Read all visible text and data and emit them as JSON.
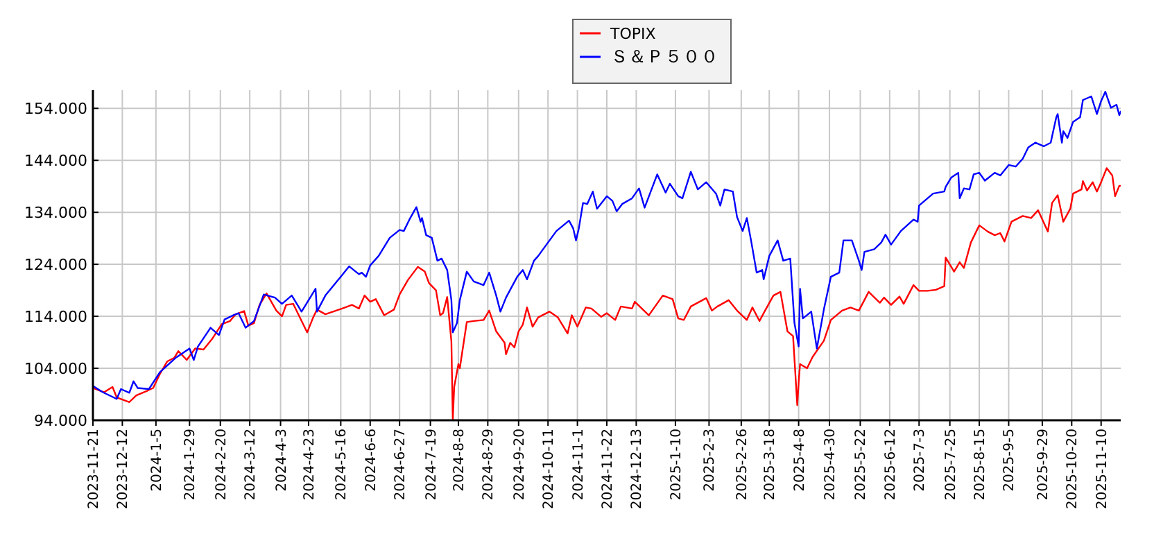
{
  "chart_data": {
    "type": "line",
    "grid": true,
    "legend": "top",
    "xlim": [
      "2023-11-21",
      "2025-11-24"
    ],
    "ylim": [
      94,
      157.5
    ],
    "xticks": [
      {
        "value": "2023-11-21",
        "label": "2023-11-21"
      },
      {
        "value": "2023-12-12",
        "label": "2023-12-12"
      },
      {
        "value": "2024-01-05",
        "label": "2024-1-5"
      },
      {
        "value": "2024-01-29",
        "label": "2024-1-29"
      },
      {
        "value": "2024-02-20",
        "label": "2024-2-20"
      },
      {
        "value": "2024-03-12",
        "label": "2024-3-12"
      },
      {
        "value": "2024-04-03",
        "label": "2024-4-3"
      },
      {
        "value": "2024-04-23",
        "label": "2024-4-23"
      },
      {
        "value": "2024-05-16",
        "label": "2024-5-16"
      },
      {
        "value": "2024-06-06",
        "label": "2024-6-6"
      },
      {
        "value": "2024-06-27",
        "label": "2024-6-27"
      },
      {
        "value": "2024-07-19",
        "label": "2024-7-19"
      },
      {
        "value": "2024-08-08",
        "label": "2024-8-8"
      },
      {
        "value": "2024-08-29",
        "label": "2024-8-29"
      },
      {
        "value": "2024-09-20",
        "label": "2024-9-20"
      },
      {
        "value": "2024-10-11",
        "label": "2024-10-11"
      },
      {
        "value": "2024-11-01",
        "label": "2024-11-1"
      },
      {
        "value": "2024-11-22",
        "label": "2024-11-22"
      },
      {
        "value": "2024-12-13",
        "label": "2024-12-13"
      },
      {
        "value": "2025-01-10",
        "label": "2025-1-10"
      },
      {
        "value": "2025-02-03",
        "label": "2025-2-3"
      },
      {
        "value": "2025-02-26",
        "label": "2025-2-26"
      },
      {
        "value": "2025-03-18",
        "label": "2025-3-18"
      },
      {
        "value": "2025-04-08",
        "label": "2025-4-8"
      },
      {
        "value": "2025-04-30",
        "label": "2025-4-30"
      },
      {
        "value": "2025-05-22",
        "label": "2025-5-22"
      },
      {
        "value": "2025-06-12",
        "label": "2025-6-12"
      },
      {
        "value": "2025-07-03",
        "label": "2025-7-3"
      },
      {
        "value": "2025-07-25",
        "label": "2025-7-25"
      },
      {
        "value": "2025-08-15",
        "label": "2025-8-15"
      },
      {
        "value": "2025-09-05",
        "label": "2025-9-5"
      },
      {
        "value": "2025-09-29",
        "label": "2025-9-29"
      },
      {
        "value": "2025-10-20",
        "label": "2025-10-20"
      },
      {
        "value": "2025-11-10",
        "label": "2025-11-10"
      }
    ],
    "yticks": [
      {
        "value": 94,
        "label": "94.000"
      },
      {
        "value": 104,
        "label": "104.000"
      },
      {
        "value": 114,
        "label": "114.000"
      },
      {
        "value": 124,
        "label": "124.000"
      },
      {
        "value": 134,
        "label": "134.000"
      },
      {
        "value": 144,
        "label": "144.000"
      },
      {
        "value": 154,
        "label": "154.000"
      }
    ],
    "series": [
      {
        "name": "TOPIX",
        "color": "#ff0000",
        "x": [
          "2023-11-21",
          "2023-11-29",
          "2023-12-05",
          "2023-12-08",
          "2023-12-17",
          "2023-12-22",
          "2023-12-30",
          "2024-01-03",
          "2024-01-08",
          "2024-01-13",
          "2024-01-18",
          "2024-01-21",
          "2024-01-27",
          "2024-02-02",
          "2024-02-08",
          "2024-02-14",
          "2024-02-21",
          "2024-02-27",
          "2024-03-02",
          "2024-03-08",
          "2024-03-11",
          "2024-03-15",
          "2024-03-19",
          "2024-03-24",
          "2024-03-31",
          "2024-04-04",
          "2024-04-07",
          "2024-04-12",
          "2024-04-22",
          "2024-04-26",
          "2024-04-29",
          "2024-05-05",
          "2024-05-17",
          "2024-05-24",
          "2024-05-29",
          "2024-06-02",
          "2024-06-06",
          "2024-06-10",
          "2024-06-16",
          "2024-06-23",
          "2024-06-27",
          "2024-07-03",
          "2024-07-10",
          "2024-07-15",
          "2024-07-18",
          "2024-07-23",
          "2024-07-26",
          "2024-07-28",
          "2024-07-31",
          "2024-08-03",
          "2024-08-04",
          "2024-08-05",
          "2024-08-08",
          "2024-08-09",
          "2024-08-14",
          "2024-08-19",
          "2024-08-26",
          "2024-08-30",
          "2024-09-04",
          "2024-09-10",
          "2024-09-11",
          "2024-09-14",
          "2024-09-17",
          "2024-09-20",
          "2024-09-23",
          "2024-09-26",
          "2024-09-30",
          "2024-10-04",
          "2024-10-12",
          "2024-10-18",
          "2024-10-25",
          "2024-10-28",
          "2024-11-01",
          "2024-11-07",
          "2024-11-11",
          "2024-11-18",
          "2024-11-22",
          "2024-11-28",
          "2024-12-02",
          "2024-12-10",
          "2024-12-12",
          "2024-12-22",
          "2025-01-01",
          "2025-01-08",
          "2025-01-12",
          "2025-01-16",
          "2025-01-21",
          "2025-02-01",
          "2025-02-05",
          "2025-02-09",
          "2025-02-17",
          "2025-02-23",
          "2025-03-02",
          "2025-03-06",
          "2025-03-11",
          "2025-03-15",
          "2025-03-21",
          "2025-03-26",
          "2025-03-31",
          "2025-04-04",
          "2025-04-05",
          "2025-04-07",
          "2025-04-08",
          "2025-04-09",
          "2025-04-14",
          "2025-04-18",
          "2025-04-26",
          "2025-05-01",
          "2025-05-09",
          "2025-05-15",
          "2025-05-21",
          "2025-05-28",
          "2025-06-05",
          "2025-06-08",
          "2025-06-13",
          "2025-06-19",
          "2025-06-22",
          "2025-06-29",
          "2025-07-03",
          "2025-07-09",
          "2025-07-15",
          "2025-07-21",
          "2025-07-22",
          "2025-07-28",
          "2025-08-01",
          "2025-08-04",
          "2025-08-09",
          "2025-08-15",
          "2025-08-21",
          "2025-08-26",
          "2025-08-30",
          "2025-09-02",
          "2025-09-07",
          "2025-09-15",
          "2025-09-21",
          "2025-09-26",
          "2025-10-03",
          "2025-10-06",
          "2025-10-10",
          "2025-10-14",
          "2025-10-19",
          "2025-10-21",
          "2025-10-27",
          "2025-10-28",
          "2025-10-31",
          "2025-11-04",
          "2025-11-07",
          "2025-11-10",
          "2025-11-14",
          "2025-11-18",
          "2025-11-20",
          "2025-11-23",
          "2025-11-24"
        ],
        "values": [
          100.2,
          99.4,
          100.4,
          98.4,
          97.5,
          98.8,
          99.7,
          100.2,
          103,
          105.3,
          106,
          107.3,
          105.6,
          107.8,
          107.6,
          109.6,
          112.5,
          113.1,
          114.4,
          115,
          112.2,
          112.7,
          116.2,
          118.4,
          115.1,
          114,
          116.2,
          116.4,
          110.9,
          113.6,
          115.3,
          114.4,
          115.5,
          116.2,
          115.5,
          118,
          116.8,
          117.3,
          114.2,
          115.3,
          118.2,
          121,
          123.5,
          122.6,
          120.4,
          119,
          114.2,
          114.6,
          117.7,
          109.2,
          94,
          100.4,
          104.8,
          104,
          112.9,
          113.1,
          113.3,
          115.1,
          111.1,
          108.9,
          106.7,
          108.9,
          108,
          111.1,
          112.4,
          115.7,
          112,
          113.8,
          114.9,
          113.8,
          110.7,
          114.2,
          112,
          115.7,
          115.5,
          113.9,
          114.6,
          113.3,
          115.9,
          115.5,
          116.8,
          114.2,
          118,
          117.3,
          113.6,
          113.3,
          115.9,
          117.5,
          115.1,
          115.9,
          117.1,
          115.1,
          113.3,
          115.7,
          113.1,
          115.1,
          118,
          118.7,
          111.1,
          110.2,
          105.8,
          96.9,
          101.3,
          104.8,
          104,
          106.2,
          109.3,
          113.3,
          115.1,
          115.7,
          115.1,
          118.7,
          116.6,
          117.6,
          116.2,
          117.8,
          116.4,
          120,
          118.9,
          118.9,
          119.1,
          119.8,
          125.3,
          122.6,
          124.4,
          123.3,
          128.2,
          131.5,
          130.3,
          129.6,
          130,
          128.4,
          132.2,
          133.3,
          132.9,
          134.4,
          130.3,
          135.8,
          137.3,
          132.2,
          134.7,
          137.6,
          138.4,
          140,
          138.2,
          139.8,
          138,
          139.8,
          142.5,
          141.1,
          137.1,
          139.1,
          139.1
        ]
      },
      {
        "name": "Ｓ＆Ｐ５００",
        "color": "#0000ff",
        "x": [
          "2023-11-21",
          "2023-11-28",
          "2023-12-08",
          "2023-12-11",
          "2023-12-17",
          "2023-12-20",
          "2023-12-23",
          "2023-12-31",
          "2024-01-08",
          "2024-01-19",
          "2024-01-29",
          "2024-02-01",
          "2024-02-04",
          "2024-02-13",
          "2024-02-19",
          "2024-02-23",
          "2024-03-01",
          "2024-03-04",
          "2024-03-09",
          "2024-03-15",
          "2024-03-22",
          "2024-03-30",
          "2024-04-04",
          "2024-04-11",
          "2024-04-18",
          "2024-04-23",
          "2024-04-28",
          "2024-04-29",
          "2024-05-05",
          "2024-05-16",
          "2024-05-22",
          "2024-05-29",
          "2024-05-31",
          "2024-06-03",
          "2024-06-06",
          "2024-06-12",
          "2024-06-20",
          "2024-06-27",
          "2024-06-30",
          "2024-07-04",
          "2024-07-09",
          "2024-07-12",
          "2024-07-13",
          "2024-07-16",
          "2024-07-20",
          "2024-07-24",
          "2024-07-27",
          "2024-07-31",
          "2024-08-03",
          "2024-08-04",
          "2024-08-07",
          "2024-08-09",
          "2024-08-14",
          "2024-08-19",
          "2024-08-26",
          "2024-08-30",
          "2024-09-04",
          "2024-09-07",
          "2024-09-11",
          "2024-09-19",
          "2024-09-23",
          "2024-09-26",
          "2024-10-01",
          "2024-10-04",
          "2024-10-11",
          "2024-10-17",
          "2024-10-26",
          "2024-10-29",
          "2024-10-31",
          "2024-11-02",
          "2024-11-05",
          "2024-11-08",
          "2024-11-12",
          "2024-11-15",
          "2024-11-22",
          "2024-11-26",
          "2024-11-29",
          "2024-12-03",
          "2024-12-10",
          "2024-12-15",
          "2024-12-19",
          "2024-12-28",
          "2025-01-03",
          "2025-01-06",
          "2025-01-12",
          "2025-01-15",
          "2025-01-21",
          "2025-01-26",
          "2025-02-01",
          "2025-02-08",
          "2025-02-11",
          "2025-02-14",
          "2025-02-20",
          "2025-02-23",
          "2025-02-27",
          "2025-03-02",
          "2025-03-05",
          "2025-03-09",
          "2025-03-13",
          "2025-03-14",
          "2025-03-18",
          "2025-03-24",
          "2025-03-28",
          "2025-04-02",
          "2025-04-05",
          "2025-04-08",
          "2025-04-09",
          "2025-04-11",
          "2025-04-17",
          "2025-04-21",
          "2025-04-26",
          "2025-05-01",
          "2025-05-07",
          "2025-05-10",
          "2025-05-16",
          "2025-05-21",
          "2025-05-23",
          "2025-05-25",
          "2025-06-01",
          "2025-06-06",
          "2025-06-09",
          "2025-06-13",
          "2025-06-20",
          "2025-06-29",
          "2025-07-02",
          "2025-07-03",
          "2025-07-13",
          "2025-07-21",
          "2025-07-22",
          "2025-07-26",
          "2025-07-31",
          "2025-08-01",
          "2025-08-04",
          "2025-08-08",
          "2025-08-11",
          "2025-08-15",
          "2025-08-19",
          "2025-08-26",
          "2025-08-30",
          "2025-09-05",
          "2025-09-10",
          "2025-09-15",
          "2025-09-19",
          "2025-09-24",
          "2025-09-30",
          "2025-10-05",
          "2025-10-09",
          "2025-10-10",
          "2025-10-13",
          "2025-10-14",
          "2025-10-17",
          "2025-10-21",
          "2025-10-26",
          "2025-10-28",
          "2025-11-03",
          "2025-11-07",
          "2025-11-10",
          "2025-11-13",
          "2025-11-17",
          "2025-11-21",
          "2025-11-23",
          "2025-11-24"
        ],
        "values": [
          100.6,
          99.4,
          98.1,
          100,
          99.3,
          101.5,
          100.2,
          100,
          103.3,
          106,
          107.8,
          105.6,
          108.2,
          111.8,
          110.4,
          113.4,
          114.3,
          114.6,
          111.8,
          113.1,
          118.2,
          117.6,
          116.4,
          118,
          114.9,
          117.1,
          119.3,
          114.9,
          118,
          121.6,
          123.6,
          122.1,
          122.4,
          121.6,
          123.8,
          125.6,
          129.1,
          130.6,
          130.4,
          132.6,
          135,
          132.2,
          132.9,
          129.6,
          129.1,
          124.7,
          125.1,
          122.9,
          117.1,
          110.9,
          112.7,
          117.1,
          122.6,
          120.7,
          120,
          122.4,
          118,
          114.9,
          117.6,
          121.6,
          122.9,
          121.1,
          124.7,
          125.6,
          128.2,
          130.4,
          132.4,
          130.9,
          128.6,
          130.9,
          135.8,
          135.6,
          138,
          134.7,
          137.1,
          136.2,
          134.2,
          135.6,
          136.7,
          138.6,
          134.9,
          141.3,
          137.8,
          139.5,
          137.1,
          136.7,
          141.8,
          138.4,
          139.8,
          137.6,
          135.3,
          138.4,
          138,
          133.1,
          130.4,
          132.9,
          128.6,
          122.4,
          122.9,
          121.1,
          125.6,
          128.6,
          124.7,
          125.1,
          112.7,
          108.2,
          119.3,
          113.6,
          114.9,
          107.8,
          115.3,
          121.6,
          122.4,
          128.6,
          128.6,
          124.7,
          122.9,
          126.4,
          126.9,
          128.2,
          129.7,
          127.8,
          130.4,
          132.6,
          132.2,
          135.3,
          137.6,
          138,
          138.9,
          140.7,
          141.6,
          136.7,
          138.6,
          138.4,
          141.3,
          141.6,
          140.1,
          141.6,
          141.1,
          143.1,
          142.8,
          144.3,
          146.5,
          147.4,
          146.7,
          147.4,
          152.3,
          152.9,
          147.4,
          149.6,
          148.3,
          151.4,
          152.3,
          155.6,
          156.3,
          152.9,
          155.4,
          157.2,
          154.1,
          154.7,
          152.7,
          153.4
        ]
      }
    ]
  }
}
